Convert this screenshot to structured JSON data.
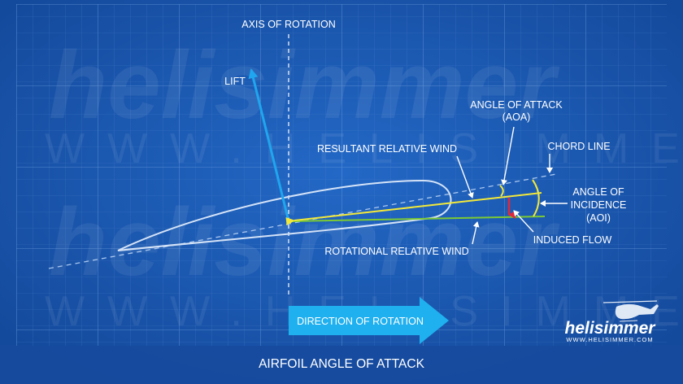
{
  "title": "AIRFOIL ANGLE OF ATTACK",
  "labels": {
    "axis_of_rotation": "AXIS OF ROTATION",
    "lift": "LIFT",
    "angle_of_attack": "ANGLE OF ATTACK",
    "aoa": "(AOA)",
    "resultant_relative_wind": "RESULTANT RELATIVE WIND",
    "chord_line": "CHORD LINE",
    "angle_of_incidence_1": "ANGLE OF",
    "angle_of_incidence_2": "INCIDENCE",
    "aoi": "(AOI)",
    "induced_flow": "INDUCED FLOW",
    "rotational_relative_wind": "ROTATIONAL RELATIVE WIND",
    "direction_of_rotation": "DIRECTION OF ROTATION"
  },
  "watermark": {
    "brand": "helisimmer",
    "url": "WWW.HELISIMMER.COM"
  },
  "logo": {
    "brand": "helisimmer",
    "url": "WWW.HELISIMMER.COM"
  },
  "colors": {
    "background": "#1a56b0",
    "lift": "#1fa6ee",
    "resultant_wind": "#f2e83a",
    "rotational_wind": "#7cc934",
    "induced_flow": "#e0283a",
    "direction_arrow": "#1fb0f0"
  }
}
